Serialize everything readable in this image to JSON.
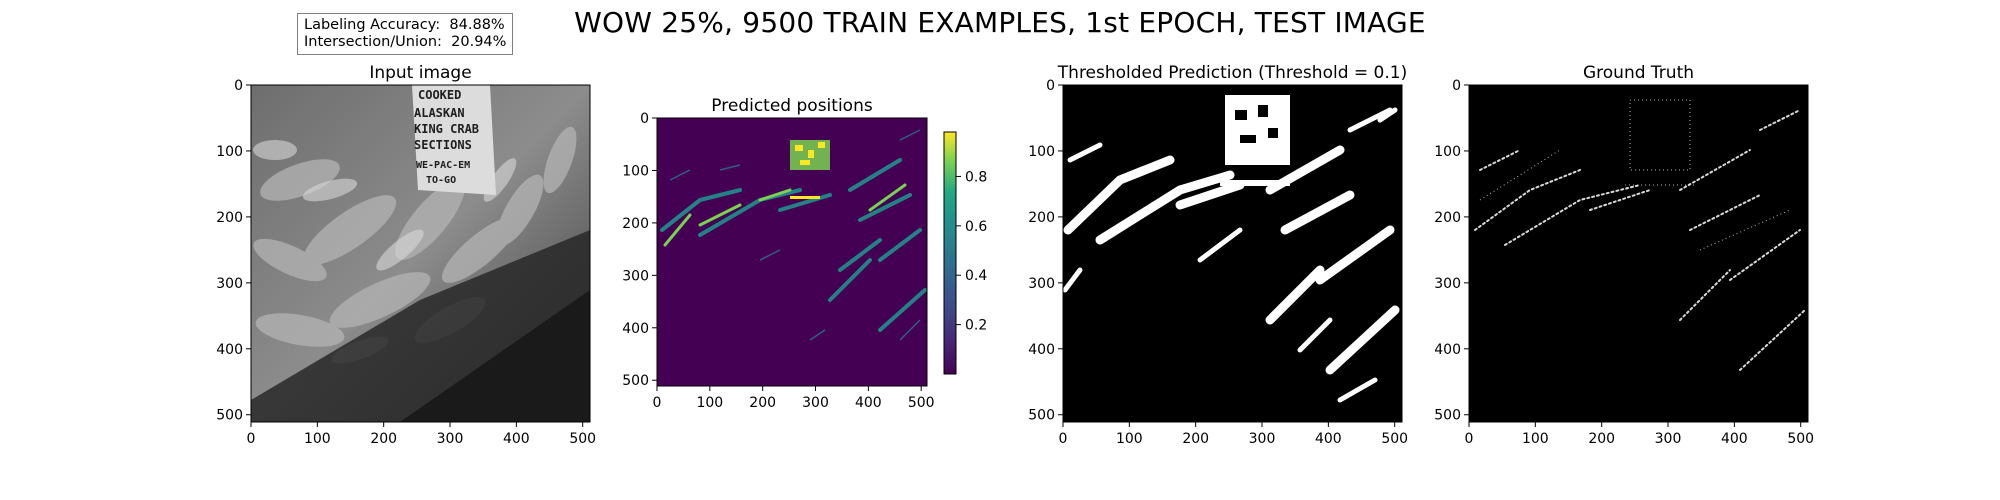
{
  "figure": {
    "title": "WOW 25%, 9500 TRAIN EXAMPLES, 1st EPOCH, TEST IMAGE",
    "metrics": {
      "accuracy_label": "Labeling Accuracy:",
      "accuracy_value": "84.88%",
      "iou_label": "Intersection/Union:",
      "iou_value": "20.94%"
    }
  },
  "crab_sign_lines": [
    "COOKED",
    "ALASKAN",
    "KING CRAB",
    "SECTIONS",
    "WE-PAC-EM",
    "TO-GO"
  ],
  "colors": {
    "background": "#ffffff",
    "viridis_low": "#440154",
    "viridis_mid": "#21918c",
    "viridis_high": "#fde725",
    "mask_on": "#ffffff",
    "mask_off": "#000000"
  },
  "chart_data": [
    {
      "type": "image",
      "title": "Input image",
      "colormap": "gray",
      "xlim": [
        0,
        511
      ],
      "ylim": [
        511,
        0
      ],
      "xticks": [
        0,
        100,
        200,
        300,
        400,
        500
      ],
      "yticks": [
        0,
        100,
        200,
        300,
        400,
        500
      ]
    },
    {
      "type": "heatmap",
      "title": "Predicted positions",
      "colormap": "viridis",
      "xlim": [
        0,
        511
      ],
      "ylim": [
        511,
        0
      ],
      "xticks": [
        0,
        100,
        200,
        300,
        400,
        500
      ],
      "yticks": [
        0,
        100,
        200,
        300,
        400,
        500
      ],
      "colorbar": {
        "range": [
          0,
          0.98
        ],
        "ticks": [
          0.2,
          0.4,
          0.6,
          0.8
        ]
      }
    },
    {
      "type": "image",
      "title": "Thresholded Prediction (Threshold = 0.1)",
      "colormap": "binary",
      "threshold": 0.1,
      "xlim": [
        0,
        511
      ],
      "ylim": [
        511,
        0
      ],
      "xticks": [
        0,
        100,
        200,
        300,
        400,
        500
      ],
      "yticks": [
        0,
        100,
        200,
        300,
        400,
        500
      ]
    },
    {
      "type": "image",
      "title": "Ground Truth",
      "colormap": "binary",
      "xlim": [
        0,
        511
      ],
      "ylim": [
        511,
        0
      ],
      "xticks": [
        0,
        100,
        200,
        300,
        400,
        500
      ],
      "yticks": [
        0,
        100,
        200,
        300,
        400,
        500
      ]
    }
  ]
}
